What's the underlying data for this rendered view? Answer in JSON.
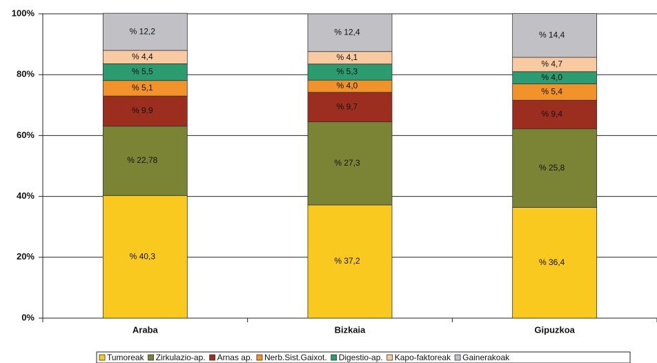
{
  "chart_data": {
    "type": "stacked_bar",
    "categories": [
      "Araba",
      "Bizkaia",
      "Gipuzkoa"
    ],
    "series": [
      {
        "name": "Tumoreak",
        "color": "#f9c920",
        "values": [
          40.3,
          37.2,
          36.4
        ],
        "value_labels": [
          "% 40,3",
          "% 37,2",
          "% 36,4"
        ]
      },
      {
        "name": "Zirkulazio-ap.",
        "color": "#7b8434",
        "values": [
          22.78,
          27.3,
          25.8
        ],
        "value_labels": [
          "% 22,78",
          "% 27,3",
          "% 25,8"
        ]
      },
      {
        "name": "Arnas ap.",
        "color": "#9c2e20",
        "values": [
          9.9,
          9.7,
          9.4
        ],
        "value_labels": [
          "% 9,9",
          "% 9,7",
          "% 9,4"
        ]
      },
      {
        "name": "Nerb.Sist.Gaixot.",
        "color": "#f1922b",
        "values": [
          5.1,
          4.0,
          5.4
        ],
        "value_labels": [
          "% 5,1",
          "% 4,0",
          "% 5,4"
        ]
      },
      {
        "name": "Digestio-ap.",
        "color": "#2c9b6f",
        "values": [
          5.5,
          5.3,
          4.0
        ],
        "value_labels": [
          "% 5,5",
          "% 5,3",
          "% 4,0"
        ]
      },
      {
        "name": "Kapo-faktoreak",
        "color": "#f8caa2",
        "values": [
          4.4,
          4.1,
          4.7
        ],
        "value_labels": [
          "% 4,4",
          "% 4,1",
          "% 4,7"
        ]
      },
      {
        "name": "Gainerakoak",
        "color": "#c1c1c5",
        "values": [
          12.2,
          12.4,
          14.4
        ],
        "value_labels": [
          "% 12,2",
          "% 12,4",
          "% 14,4"
        ]
      }
    ],
    "ylim": [
      0,
      100
    ],
    "yticks": [
      {
        "value": 0,
        "label": "0%"
      },
      {
        "value": 20,
        "label": "20%"
      },
      {
        "value": 40,
        "label": "40%"
      },
      {
        "value": 60,
        "label": "60%"
      },
      {
        "value": 80,
        "label": "80%"
      },
      {
        "value": 100,
        "label": "100%"
      }
    ],
    "grid": true
  }
}
